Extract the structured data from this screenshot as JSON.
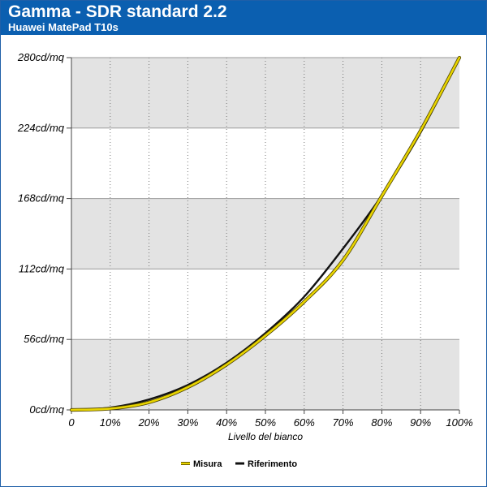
{
  "chart_data": {
    "type": "line",
    "title": "Gamma - SDR standard 2.2",
    "subtitle": "Huawei MatePad T10s",
    "xlabel": "Livello del bianco",
    "ylabel": "",
    "x": [
      0,
      10,
      20,
      30,
      40,
      50,
      60,
      70,
      80,
      90,
      100
    ],
    "x_tick_labels": [
      "0",
      "10%",
      "20%",
      "30%",
      "40%",
      "50%",
      "60%",
      "70%",
      "80%",
      "90%",
      "100%"
    ],
    "xlim": [
      0,
      100
    ],
    "y_ticks": [
      0,
      56,
      112,
      168,
      224,
      280
    ],
    "y_tick_labels": [
      "0cd/mq",
      "56cd/mq",
      "112cd/mq",
      "168cd/mq",
      "224cd/mq",
      "280cd/mq"
    ],
    "ylim": [
      0,
      280
    ],
    "grid": true,
    "legend_position": "bottom-center",
    "series": [
      {
        "name": "Misura",
        "color": "#e8d400",
        "values": [
          0,
          1,
          6,
          18,
          36,
          59,
          86,
          119,
          170,
          222,
          280
        ]
      },
      {
        "name": "Riferimento",
        "color": "#111111",
        "values": [
          0,
          1.8,
          8.3,
          19.8,
          37.5,
          61.0,
          90.0,
          128.2,
          170.4,
          220.5,
          280
        ]
      }
    ]
  }
}
